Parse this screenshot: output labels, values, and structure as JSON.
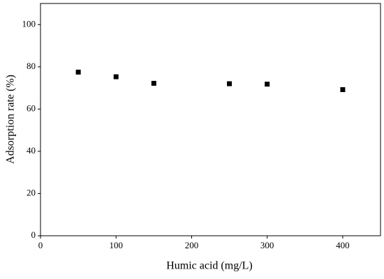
{
  "chart_data": {
    "type": "scatter",
    "x_label": "Humic acid (mg/L)",
    "y_label": "Adsorption rate (%)",
    "x": [
      50,
      100,
      150,
      250,
      300,
      400
    ],
    "values": [
      77.5,
      75.3,
      72.2,
      72.0,
      71.8,
      69.2
    ],
    "color": "#000000",
    "xlim": [
      0,
      450
    ],
    "xticks": [
      0,
      100,
      200,
      300,
      400
    ],
    "ylim": [
      0,
      110
    ],
    "yticks": [
      0,
      20,
      40,
      60,
      80,
      100
    ],
    "grid": false
  }
}
